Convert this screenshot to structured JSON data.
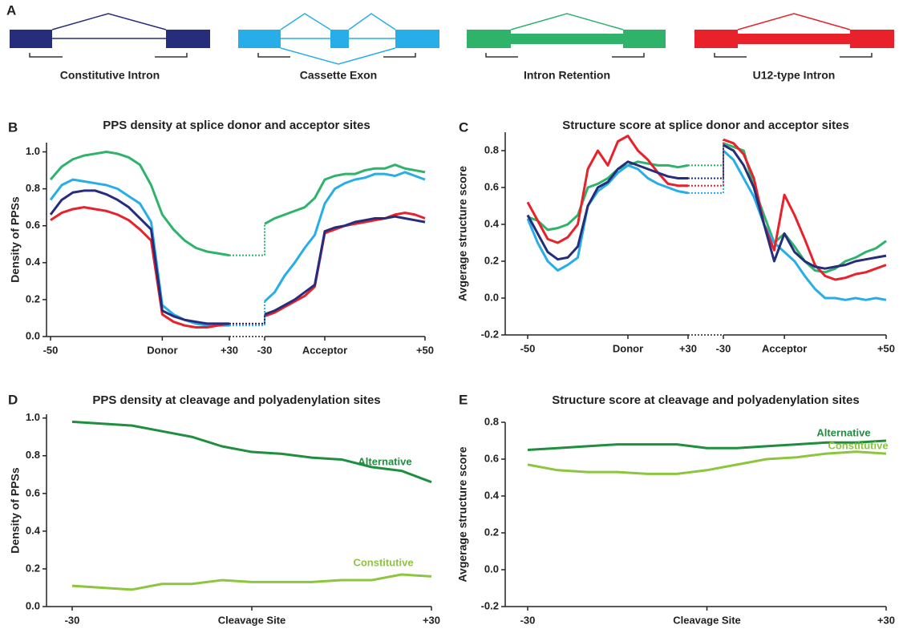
{
  "diagram": {
    "panel": "A",
    "items": [
      {
        "label": "Constitutive Intron"
      },
      {
        "label": "Cassette Exon"
      },
      {
        "label": "Intron Retention"
      },
      {
        "label": "U12-type Intron"
      }
    ]
  },
  "chart_data": [
    {
      "type": "line",
      "panel": "B",
      "title": "PPS density at splice donor and acceptor sites",
      "y_label": "Density of PPSs",
      "ylim": [
        0,
        1.05
      ],
      "yticks": [
        {
          "value": 0,
          "label": "0.0"
        },
        0.2,
        0.4,
        0.6,
        0.8,
        {
          "value": 1,
          "label": "1.0"
        }
      ],
      "x_segments": [
        {
          "xlim": [
            -50,
            30
          ],
          "xticks": [
            -50,
            {
              "value": 0,
              "label": "Donor"
            },
            {
              "value": 30,
              "label": "+30"
            }
          ],
          "x": [
            -50,
            -45,
            -40,
            -35,
            -30,
            -25,
            -20,
            -15,
            -10,
            -5,
            0,
            5,
            10,
            15,
            20,
            25,
            30
          ]
        },
        {
          "xlim": [
            -30,
            50
          ],
          "xticks": [
            -30,
            {
              "value": 0,
              "label": "Acceptor"
            },
            {
              "value": 50,
              "label": "+50"
            }
          ],
          "x": [
            -30,
            -25,
            -20,
            -15,
            -10,
            -5,
            0,
            5,
            10,
            15,
            20,
            25,
            30,
            35,
            40,
            45,
            50
          ]
        }
      ],
      "series": [
        {
          "color": "#2fb36b",
          "values": [
            [
              0.85,
              0.92,
              0.96,
              0.98,
              0.99,
              1.0,
              0.99,
              0.97,
              0.93,
              0.82,
              0.66,
              0.58,
              0.52,
              0.48,
              0.46,
              0.45,
              0.44
            ],
            [
              0.61,
              0.64,
              0.66,
              0.68,
              0.7,
              0.75,
              0.85,
              0.87,
              0.88,
              0.88,
              0.9,
              0.91,
              0.91,
              0.93,
              0.91,
              0.9,
              0.89
            ]
          ]
        },
        {
          "color": "#27aee8",
          "values": [
            [
              0.74,
              0.82,
              0.85,
              0.84,
              0.83,
              0.82,
              0.8,
              0.76,
              0.72,
              0.62,
              0.17,
              0.12,
              0.09,
              0.07,
              0.06,
              0.06,
              0.06
            ],
            [
              0.19,
              0.24,
              0.33,
              0.4,
              0.48,
              0.55,
              0.72,
              0.8,
              0.83,
              0.85,
              0.86,
              0.88,
              0.88,
              0.87,
              0.89,
              0.87,
              0.85
            ]
          ]
        },
        {
          "color": "#e8212a",
          "values": [
            [
              0.63,
              0.67,
              0.69,
              0.7,
              0.69,
              0.68,
              0.66,
              0.63,
              0.58,
              0.52,
              0.12,
              0.08,
              0.06,
              0.05,
              0.05,
              0.06,
              0.07
            ],
            [
              0.11,
              0.13,
              0.16,
              0.19,
              0.22,
              0.27,
              0.56,
              0.58,
              0.6,
              0.61,
              0.62,
              0.63,
              0.64,
              0.66,
              0.67,
              0.66,
              0.64
            ]
          ]
        },
        {
          "color": "#262e7c",
          "values": [
            [
              0.66,
              0.74,
              0.78,
              0.79,
              0.79,
              0.77,
              0.74,
              0.7,
              0.64,
              0.58,
              0.14,
              0.11,
              0.09,
              0.08,
              0.07,
              0.07,
              0.07
            ],
            [
              0.12,
              0.14,
              0.17,
              0.2,
              0.24,
              0.28,
              0.57,
              0.59,
              0.6,
              0.62,
              0.63,
              0.64,
              0.64,
              0.65,
              0.64,
              0.63,
              0.62
            ]
          ]
        }
      ]
    },
    {
      "type": "line",
      "panel": "C",
      "title": "Structure score at splice donor and acceptor sites",
      "y_label": "Avgerage structure score",
      "ylim": [
        -0.2,
        0.9
      ],
      "yticks": [
        -0.2,
        {
          "value": 0,
          "label": "0.0"
        },
        0.2,
        0.4,
        0.6,
        0.8
      ],
      "x_segments": [
        {
          "xlim": [
            -50,
            30
          ],
          "xticks": [
            -50,
            {
              "value": 0,
              "label": "Donor"
            },
            {
              "value": 30,
              "label": "+30"
            }
          ],
          "x": [
            -50,
            -45,
            -40,
            -35,
            -30,
            -25,
            -20,
            -15,
            -10,
            -5,
            0,
            5,
            10,
            15,
            20,
            25,
            30
          ]
        },
        {
          "xlim": [
            -30,
            50
          ],
          "xticks": [
            -30,
            {
              "value": 0,
              "label": "Acceptor"
            },
            {
              "value": 50,
              "label": "+50"
            }
          ],
          "x": [
            -30,
            -25,
            -20,
            -15,
            -10,
            -5,
            0,
            5,
            10,
            15,
            20,
            25,
            30,
            35,
            40,
            45,
            50
          ]
        }
      ],
      "series": [
        {
          "color": "#2fb36b",
          "values": [
            [
              0.44,
              0.42,
              0.37,
              0.38,
              0.4,
              0.45,
              0.6,
              0.62,
              0.65,
              0.7,
              0.72,
              0.74,
              0.73,
              0.72,
              0.72,
              0.71,
              0.72
            ],
            [
              0.84,
              0.82,
              0.8,
              0.6,
              0.45,
              0.3,
              0.35,
              0.28,
              0.2,
              0.15,
              0.14,
              0.16,
              0.2,
              0.22,
              0.25,
              0.27,
              0.31
            ]
          ]
        },
        {
          "color": "#27aee8",
          "values": [
            [
              0.43,
              0.3,
              0.2,
              0.15,
              0.18,
              0.22,
              0.5,
              0.58,
              0.62,
              0.68,
              0.72,
              0.7,
              0.65,
              0.62,
              0.6,
              0.58,
              0.57
            ],
            [
              0.8,
              0.75,
              0.65,
              0.55,
              0.4,
              0.3,
              0.25,
              0.2,
              0.12,
              0.05,
              0.0,
              0.0,
              -0.01,
              0.0,
              -0.01,
              0.0,
              -0.01
            ]
          ]
        },
        {
          "color": "#e8212a",
          "values": [
            [
              0.52,
              0.42,
              0.32,
              0.3,
              0.33,
              0.4,
              0.7,
              0.8,
              0.72,
              0.85,
              0.88,
              0.8,
              0.75,
              0.68,
              0.62,
              0.61,
              0.61
            ],
            [
              0.86,
              0.84,
              0.78,
              0.65,
              0.4,
              0.26,
              0.56,
              0.45,
              0.32,
              0.18,
              0.12,
              0.1,
              0.11,
              0.13,
              0.14,
              0.16,
              0.18
            ]
          ]
        },
        {
          "color": "#262e7c",
          "values": [
            [
              0.45,
              0.35,
              0.25,
              0.21,
              0.22,
              0.28,
              0.5,
              0.6,
              0.63,
              0.7,
              0.74,
              0.72,
              0.7,
              0.68,
              0.66,
              0.65,
              0.65
            ],
            [
              0.83,
              0.8,
              0.72,
              0.6,
              0.4,
              0.2,
              0.35,
              0.25,
              0.2,
              0.17,
              0.16,
              0.17,
              0.18,
              0.2,
              0.21,
              0.22,
              0.23
            ]
          ]
        }
      ]
    },
    {
      "type": "line",
      "panel": "D",
      "title": "PPS density at cleavage and polyadenylation sites",
      "y_label": "Density of PPSs",
      "ylim": [
        0,
        1.02
      ],
      "yticks": [
        {
          "value": 0,
          "label": "0.0"
        },
        0.2,
        0.4,
        0.6,
        0.8,
        {
          "value": 1,
          "label": "1.0"
        }
      ],
      "xlim": [
        -30,
        30
      ],
      "xticks": [
        -30,
        {
          "value": 0,
          "label": "Cleavage Site"
        },
        {
          "value": 30,
          "label": "+30"
        }
      ],
      "x": [
        -30,
        -25,
        -20,
        -15,
        -10,
        -5,
        0,
        5,
        10,
        15,
        20,
        25,
        30
      ],
      "series": [
        {
          "name": "Alternative",
          "color": "#1f8f3f",
          "values": [
            0.98,
            0.97,
            0.96,
            0.93,
            0.9,
            0.85,
            0.82,
            0.81,
            0.79,
            0.78,
            0.74,
            0.72,
            0.66
          ]
        },
        {
          "name": "Constitutive",
          "color": "#8cc63e",
          "values": [
            0.11,
            0.1,
            0.09,
            0.12,
            0.12,
            0.14,
            0.13,
            0.13,
            0.13,
            0.14,
            0.14,
            0.17,
            0.16
          ]
        }
      ]
    },
    {
      "type": "line",
      "panel": "E",
      "title": "Structure score at cleavage and polyadenylation sites",
      "y_label": "Avgerage structure score",
      "ylim": [
        -0.2,
        0.8
      ],
      "yticks": [
        -0.2,
        {
          "value": 0,
          "label": "0.0"
        },
        0.2,
        0.4,
        0.6,
        0.8
      ],
      "xlim": [
        -30,
        30
      ],
      "xticks": [
        -30,
        {
          "value": 0,
          "label": "Cleavage Site"
        },
        {
          "value": 30,
          "label": "+30"
        }
      ],
      "x": [
        -30,
        -25,
        -20,
        -15,
        -10,
        -5,
        0,
        5,
        10,
        15,
        20,
        25,
        30
      ],
      "series": [
        {
          "name": "Alternative",
          "color": "#1f8f3f",
          "values": [
            0.65,
            0.66,
            0.67,
            0.68,
            0.68,
            0.68,
            0.66,
            0.66,
            0.67,
            0.68,
            0.69,
            0.69,
            0.7
          ]
        },
        {
          "name": "Constitutive",
          "color": "#8cc63e",
          "values": [
            0.57,
            0.54,
            0.53,
            0.53,
            0.52,
            0.52,
            0.54,
            0.57,
            0.6,
            0.61,
            0.63,
            0.64,
            0.63
          ]
        }
      ]
    }
  ]
}
